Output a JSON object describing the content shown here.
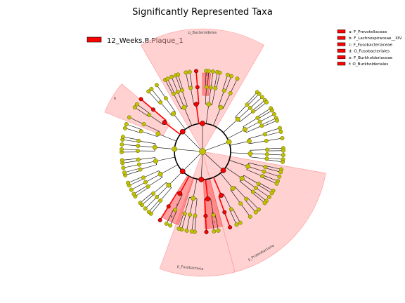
{
  "title": "Significantly Represented Taxa",
  "group_legend": {
    "label": "12_Weeks.B.Plaque_1",
    "color": "#ff0000"
  },
  "taxa_legend": [
    {
      "letter": "a",
      "text": "a: F_Prevotellaceae"
    },
    {
      "letter": "b",
      "text": "b: F_Lachnospiraceae__XIV"
    },
    {
      "letter": "c",
      "text": "c: F_Fusobacteriaceae"
    },
    {
      "letter": "d",
      "text": "d: O_Fusobacteriales"
    },
    {
      "letter": "e",
      "text": "e: F_Burkholderiaceae"
    },
    {
      "letter": "f",
      "text": "f: O_Burkholderiales"
    }
  ],
  "phylum_labels": [
    "p_Bacteroidetes",
    "p_Fusobacteria",
    "p_Proteobacteria"
  ],
  "colors": {
    "node_fill": "#c2c200",
    "node_stroke": "#5a5a00",
    "highlight_node": "#ff0000",
    "highlight_stroke": "#000000",
    "sector_fill": "#ff9999",
    "sector_dark": "#ff5050"
  }
}
